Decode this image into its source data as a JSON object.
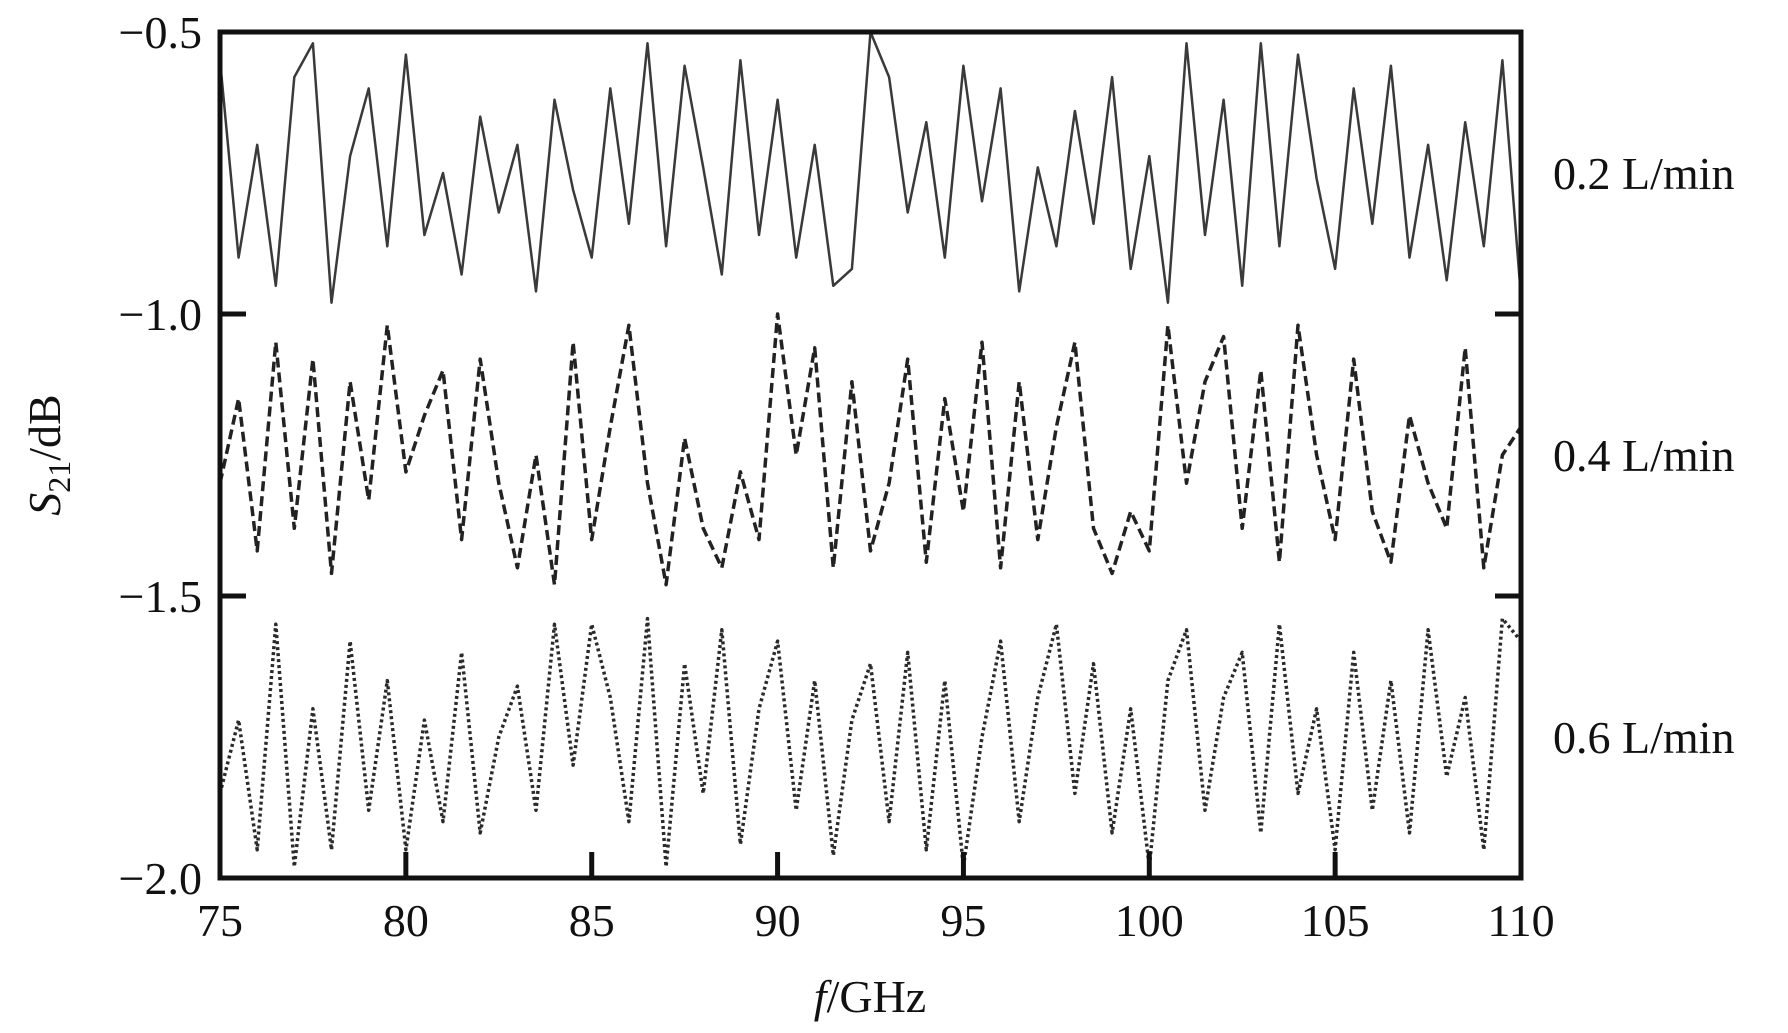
{
  "chart_data": {
    "type": "line",
    "title": "",
    "xlabel": {
      "italic": "f",
      "rest": "/GHz"
    },
    "ylabel": {
      "main": "S",
      "sub": "21",
      "rest": "/dB"
    },
    "xlim": [
      75,
      110
    ],
    "ylim": [
      -2.0,
      -0.5
    ],
    "xticks": [
      "75",
      "80",
      "85",
      "90",
      "95",
      "100",
      "105",
      "110"
    ],
    "yticks": [
      "−0.5",
      "−1.0",
      "−1.5",
      "−2.0"
    ],
    "grid": false,
    "legend": "right-side labels",
    "series": [
      {
        "name": "0.2 L/min",
        "style": "solid",
        "color": "#3a3a3a",
        "x": [
          75,
          75.5,
          76,
          76.5,
          77,
          77.5,
          78,
          78.5,
          79,
          79.5,
          80,
          80.5,
          81,
          81.5,
          82,
          82.5,
          83,
          83.5,
          84,
          84.5,
          85,
          85.5,
          86,
          86.5,
          87,
          87.5,
          88,
          88.5,
          89,
          89.5,
          90,
          90.5,
          91,
          91.5,
          92,
          92.5,
          93,
          93.5,
          94,
          94.5,
          95,
          95.5,
          96,
          96.5,
          97,
          97.5,
          98,
          98.5,
          99,
          99.5,
          100,
          100.5,
          101,
          101.5,
          102,
          102.5,
          103,
          103.5,
          104,
          104.5,
          105,
          105.5,
          106,
          106.5,
          107,
          107.5,
          108,
          108.5,
          109,
          109.5,
          110
        ],
        "y": [
          -0.55,
          -0.9,
          -0.7,
          -0.95,
          -0.58,
          -0.52,
          -0.98,
          -0.72,
          -0.6,
          -0.88,
          -0.54,
          -0.86,
          -0.75,
          -0.93,
          -0.65,
          -0.82,
          -0.7,
          -0.96,
          -0.62,
          -0.78,
          -0.9,
          -0.6,
          -0.84,
          -0.52,
          -0.88,
          -0.56,
          -0.74,
          -0.93,
          -0.55,
          -0.86,
          -0.62,
          -0.9,
          -0.7,
          -0.95,
          -0.92,
          -0.5,
          -0.58,
          -0.82,
          -0.66,
          -0.9,
          -0.56,
          -0.8,
          -0.6,
          -0.96,
          -0.74,
          -0.88,
          -0.64,
          -0.84,
          -0.58,
          -0.92,
          -0.72,
          -0.98,
          -0.52,
          -0.86,
          -0.62,
          -0.95,
          -0.52,
          -0.88,
          -0.54,
          -0.76,
          -0.92,
          -0.6,
          -0.84,
          -0.56,
          -0.9,
          -0.7,
          -0.94,
          -0.66,
          -0.88,
          -0.55,
          -0.97
        ]
      },
      {
        "name": "0.4 L/min",
        "style": "dashed",
        "color": "#222222",
        "x": [
          75,
          75.5,
          76,
          76.5,
          77,
          77.5,
          78,
          78.5,
          79,
          79.5,
          80,
          80.5,
          81,
          81.5,
          82,
          82.5,
          83,
          83.5,
          84,
          84.5,
          85,
          85.5,
          86,
          86.5,
          87,
          87.5,
          88,
          88.5,
          89,
          89.5,
          90,
          90.5,
          91,
          91.5,
          92,
          92.5,
          93,
          93.5,
          94,
          94.5,
          95,
          95.5,
          96,
          96.5,
          97,
          97.5,
          98,
          98.5,
          99,
          99.5,
          100,
          100.5,
          101,
          101.5,
          102,
          102.5,
          103,
          103.5,
          104,
          104.5,
          105,
          105.5,
          106,
          106.5,
          107,
          107.5,
          108,
          108.5,
          109,
          109.5,
          110
        ],
        "y": [
          -1.3,
          -1.15,
          -1.42,
          -1.05,
          -1.38,
          -1.08,
          -1.46,
          -1.12,
          -1.33,
          -1.02,
          -1.28,
          -1.18,
          -1.1,
          -1.4,
          -1.08,
          -1.3,
          -1.45,
          -1.25,
          -1.48,
          -1.05,
          -1.4,
          -1.2,
          -1.02,
          -1.3,
          -1.48,
          -1.22,
          -1.38,
          -1.45,
          -1.28,
          -1.4,
          -1.0,
          -1.25,
          -1.06,
          -1.45,
          -1.12,
          -1.42,
          -1.3,
          -1.08,
          -1.44,
          -1.15,
          -1.35,
          -1.05,
          -1.45,
          -1.12,
          -1.4,
          -1.2,
          -1.05,
          -1.38,
          -1.46,
          -1.35,
          -1.42,
          -1.02,
          -1.3,
          -1.12,
          -1.04,
          -1.38,
          -1.1,
          -1.44,
          -1.02,
          -1.25,
          -1.4,
          -1.08,
          -1.35,
          -1.44,
          -1.18,
          -1.3,
          -1.38,
          -1.06,
          -1.45,
          -1.25,
          -1.2
        ]
      },
      {
        "name": "0.6 L/min",
        "style": "dotted",
        "color": "#2a2a2a",
        "x": [
          75,
          75.5,
          76,
          76.5,
          77,
          77.5,
          78,
          78.5,
          79,
          79.5,
          80,
          80.5,
          81,
          81.5,
          82,
          82.5,
          83,
          83.5,
          84,
          84.5,
          85,
          85.5,
          86,
          86.5,
          87,
          87.5,
          88,
          88.5,
          89,
          89.5,
          90,
          90.5,
          91,
          91.5,
          92,
          92.5,
          93,
          93.5,
          94,
          94.5,
          95,
          95.5,
          96,
          96.5,
          97,
          97.5,
          98,
          98.5,
          99,
          99.5,
          100,
          100.5,
          101,
          101.5,
          102,
          102.5,
          103,
          103.5,
          104,
          104.5,
          105,
          105.5,
          106,
          106.5,
          107,
          107.5,
          108,
          108.5,
          109,
          109.5,
          110
        ],
        "y": [
          -1.85,
          -1.72,
          -1.95,
          -1.55,
          -1.98,
          -1.7,
          -1.95,
          -1.58,
          -1.88,
          -1.65,
          -1.95,
          -1.72,
          -1.9,
          -1.6,
          -1.92,
          -1.75,
          -1.66,
          -1.88,
          -1.55,
          -1.8,
          -1.55,
          -1.68,
          -1.9,
          -1.54,
          -1.98,
          -1.62,
          -1.85,
          -1.56,
          -1.94,
          -1.7,
          -1.58,
          -1.88,
          -1.65,
          -1.96,
          -1.72,
          -1.62,
          -1.9,
          -1.6,
          -1.95,
          -1.65,
          -1.98,
          -1.75,
          -1.58,
          -1.9,
          -1.68,
          -1.55,
          -1.85,
          -1.62,
          -1.92,
          -1.7,
          -1.98,
          -1.65,
          -1.56,
          -1.88,
          -1.68,
          -1.6,
          -1.92,
          -1.55,
          -1.85,
          -1.7,
          -1.95,
          -1.6,
          -1.88,
          -1.65,
          -1.92,
          -1.56,
          -1.82,
          -1.68,
          -1.95,
          -1.54,
          -1.58
        ]
      }
    ]
  }
}
